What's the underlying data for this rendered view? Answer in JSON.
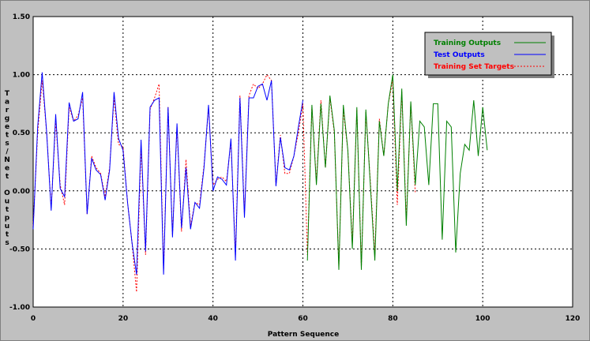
{
  "chart_data": {
    "type": "line",
    "xlabel": "Pattern Sequence",
    "ylabel": "Targets/Net Outputs",
    "xlim": [
      0,
      120
    ],
    "ylim": [
      -1.0,
      1.5
    ],
    "x_ticks": [
      "0",
      "20",
      "40",
      "60",
      "80",
      "100",
      "120"
    ],
    "y_ticks": [
      "-1.00",
      "-0.50",
      "0.00",
      "0.50",
      "1.00",
      "1.50"
    ],
    "grid": true,
    "legend_position": "top-right",
    "series": [
      {
        "name": "Training Outputs",
        "color": "#008000",
        "style": "solid",
        "x": [
          61,
          62,
          63,
          64,
          65,
          66,
          67,
          68,
          69,
          70,
          71,
          72,
          73,
          74,
          75,
          76,
          77,
          78,
          79,
          80,
          81,
          82,
          83,
          84,
          85,
          86,
          87,
          88,
          89,
          90,
          91,
          92,
          93,
          94,
          95,
          96,
          97,
          98,
          99,
          100,
          101
        ],
        "values": [
          -0.6,
          0.74,
          0.05,
          0.75,
          0.2,
          0.82,
          0.52,
          -0.68,
          0.74,
          0.35,
          -0.5,
          0.72,
          -0.68,
          0.7,
          0.05,
          -0.6,
          0.6,
          0.3,
          0.75,
          1.0,
          0.0,
          0.88,
          -0.3,
          0.77,
          0.05,
          0.6,
          0.55,
          0.05,
          0.75,
          0.75,
          -0.42,
          0.6,
          0.55,
          -0.53,
          0.15,
          0.4,
          0.35,
          0.78,
          0.3,
          0.72,
          0.35
        ]
      },
      {
        "name": "Test Outputs",
        "color": "#0000ff",
        "style": "solid",
        "x": [
          0,
          1,
          2,
          3,
          4,
          5,
          6,
          7,
          8,
          9,
          10,
          11,
          12,
          13,
          14,
          15,
          16,
          17,
          18,
          19,
          20,
          21,
          22,
          23,
          24,
          25,
          26,
          27,
          28,
          29,
          30,
          31,
          32,
          33,
          34,
          35,
          36,
          37,
          38,
          39,
          40,
          41,
          42,
          43,
          44,
          45,
          46,
          47,
          48,
          49,
          50,
          51,
          52,
          53,
          54,
          55,
          56,
          57,
          58,
          59,
          60
        ],
        "values": [
          -0.33,
          0.55,
          1.02,
          0.5,
          -0.17,
          0.66,
          0.02,
          -0.05,
          0.76,
          0.6,
          0.62,
          0.85,
          -0.2,
          0.28,
          0.18,
          0.14,
          -0.08,
          0.18,
          0.85,
          0.45,
          0.35,
          -0.1,
          -0.45,
          -0.72,
          0.44,
          -0.52,
          0.72,
          0.78,
          0.8,
          -0.72,
          0.72,
          -0.4,
          0.58,
          -0.32,
          0.2,
          -0.33,
          -0.1,
          -0.15,
          0.2,
          0.74,
          0.0,
          0.12,
          0.1,
          0.05,
          0.45,
          -0.6,
          0.8,
          -0.23,
          0.8,
          0.8,
          0.9,
          0.92,
          0.78,
          0.95,
          0.04,
          0.46,
          0.2,
          0.18,
          0.3,
          0.55,
          0.78
        ]
      },
      {
        "name": "Training Set Targets",
        "color": "#ff0000",
        "style": "dashed",
        "x": [
          0,
          1,
          2,
          3,
          4,
          5,
          6,
          7,
          8,
          9,
          10,
          11,
          12,
          13,
          14,
          15,
          16,
          17,
          18,
          19,
          20,
          21,
          22,
          23,
          24,
          25,
          26,
          27,
          28,
          29,
          30,
          31,
          32,
          33,
          34,
          35,
          36,
          37,
          38,
          39,
          40,
          41,
          42,
          43,
          44,
          45,
          46,
          47,
          48,
          49,
          50,
          51,
          52,
          53,
          54,
          55,
          56,
          57,
          58,
          59,
          60,
          61,
          62,
          63,
          64,
          65,
          66,
          67,
          68,
          69,
          70,
          71,
          72,
          73,
          74,
          75,
          76,
          77,
          78,
          79,
          80,
          81,
          82,
          83,
          84,
          85
        ],
        "values": [
          -0.3,
          0.5,
          0.95,
          0.5,
          -0.15,
          0.6,
          0.05,
          -0.12,
          0.72,
          0.6,
          0.65,
          0.8,
          -0.2,
          0.3,
          0.2,
          0.15,
          -0.05,
          0.2,
          0.8,
          0.4,
          0.38,
          -0.1,
          -0.45,
          -0.87,
          0.38,
          -0.55,
          0.7,
          0.8,
          0.92,
          -0.68,
          0.72,
          -0.38,
          0.55,
          -0.35,
          0.27,
          -0.3,
          -0.1,
          -0.12,
          0.22,
          0.72,
          0.05,
          0.1,
          0.12,
          0.08,
          0.42,
          -0.55,
          0.82,
          -0.2,
          0.82,
          0.92,
          0.88,
          0.92,
          1.0,
          0.95,
          0.05,
          0.48,
          0.15,
          0.15,
          0.3,
          0.5,
          0.75,
          -0.55,
          0.72,
          0.08,
          0.78,
          0.2,
          0.8,
          0.5,
          -0.65,
          0.7,
          0.35,
          -0.45,
          0.7,
          -0.65,
          0.68,
          0.08,
          -0.55,
          0.62,
          0.3,
          0.75,
          0.95,
          -0.12,
          0.85,
          -0.25,
          0.75,
          -0.02
        ]
      }
    ]
  }
}
